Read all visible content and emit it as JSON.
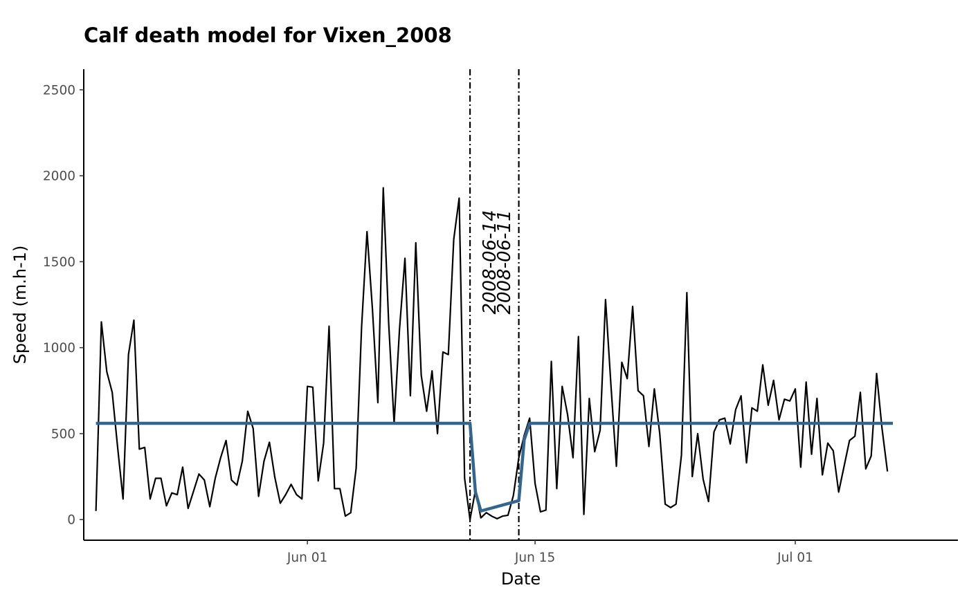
{
  "chart_data": {
    "type": "line",
    "title": "Calf death model for Vixen_2008",
    "xlabel": "Date",
    "ylabel": "Speed (m.h-1)",
    "xlim": [
      "2008-05-18T06:00",
      "2008-07-11T00:00"
    ],
    "ylim": [
      -120,
      2620
    ],
    "y_ticks": [
      0,
      500,
      1000,
      1500,
      2000,
      2500
    ],
    "x_ticks": [
      {
        "date": "2008-06-01",
        "label": "Jun 01"
      },
      {
        "date": "2008-06-15",
        "label": "Jun 15"
      },
      {
        "date": "2008-07-01",
        "label": "Jul 01"
      }
    ],
    "grid": false,
    "legend": "none",
    "colors": {
      "observed": "#000000",
      "model": "#33668f",
      "vlines": "#000000"
    },
    "series": [
      {
        "style": "observed",
        "start": "2008-05-19T00:00",
        "step_hours": 8,
        "values": [
          50,
          1150,
          860,
          740,
          420,
          120,
          960,
          1160,
          410,
          420,
          120,
          240,
          240,
          80,
          155,
          145,
          305,
          65,
          165,
          265,
          230,
          75,
          240,
          360,
          460,
          230,
          200,
          340,
          630,
          530,
          135,
          340,
          450,
          245,
          95,
          145,
          205,
          145,
          120,
          775,
          770,
          225,
          445,
          1125,
          180,
          180,
          20,
          40,
          300,
          1120,
          1675,
          1225,
          680,
          1930,
          1140,
          560,
          1110,
          1520,
          720,
          1610,
          840,
          630,
          865,
          500,
          975,
          960,
          1630,
          1870,
          240,
          0,
          170,
          10,
          40,
          20,
          5,
          20,
          25,
          140,
          360,
          490,
          590,
          210,
          45,
          55,
          920,
          180,
          775,
          610,
          360,
          1065,
          30,
          705,
          395,
          520,
          1280,
          780,
          310,
          915,
          820,
          1240,
          750,
          720,
          425,
          760,
          500,
          90,
          70,
          90,
          375,
          1320,
          250,
          500,
          235,
          105,
          510,
          580,
          590,
          440,
          640,
          720,
          330,
          650,
          630,
          900,
          665,
          810,
          580,
          700,
          690,
          760,
          305,
          800,
          380,
          705,
          260,
          445,
          400,
          160,
          310,
          460,
          485,
          740,
          295,
          370,
          850,
          530,
          280
        ]
      },
      {
        "style": "model",
        "points": [
          {
            "x": "2008-05-19T00:00",
            "y": 560
          },
          {
            "x": "2008-06-11T00:00",
            "y": 560
          },
          {
            "x": "2008-06-11T08:00",
            "y": 160
          },
          {
            "x": "2008-06-11T16:00",
            "y": 50
          },
          {
            "x": "2008-06-14T00:00",
            "y": 110
          },
          {
            "x": "2008-06-14T08:00",
            "y": 465
          },
          {
            "x": "2008-06-14T16:00",
            "y": 560
          },
          {
            "x": "2008-07-07T00:00",
            "y": 560
          }
        ]
      }
    ],
    "vlines": [
      {
        "date": "2008-06-11",
        "label": "2008-06-11"
      },
      {
        "date": "2008-06-14",
        "label": "2008-06-14"
      }
    ]
  }
}
